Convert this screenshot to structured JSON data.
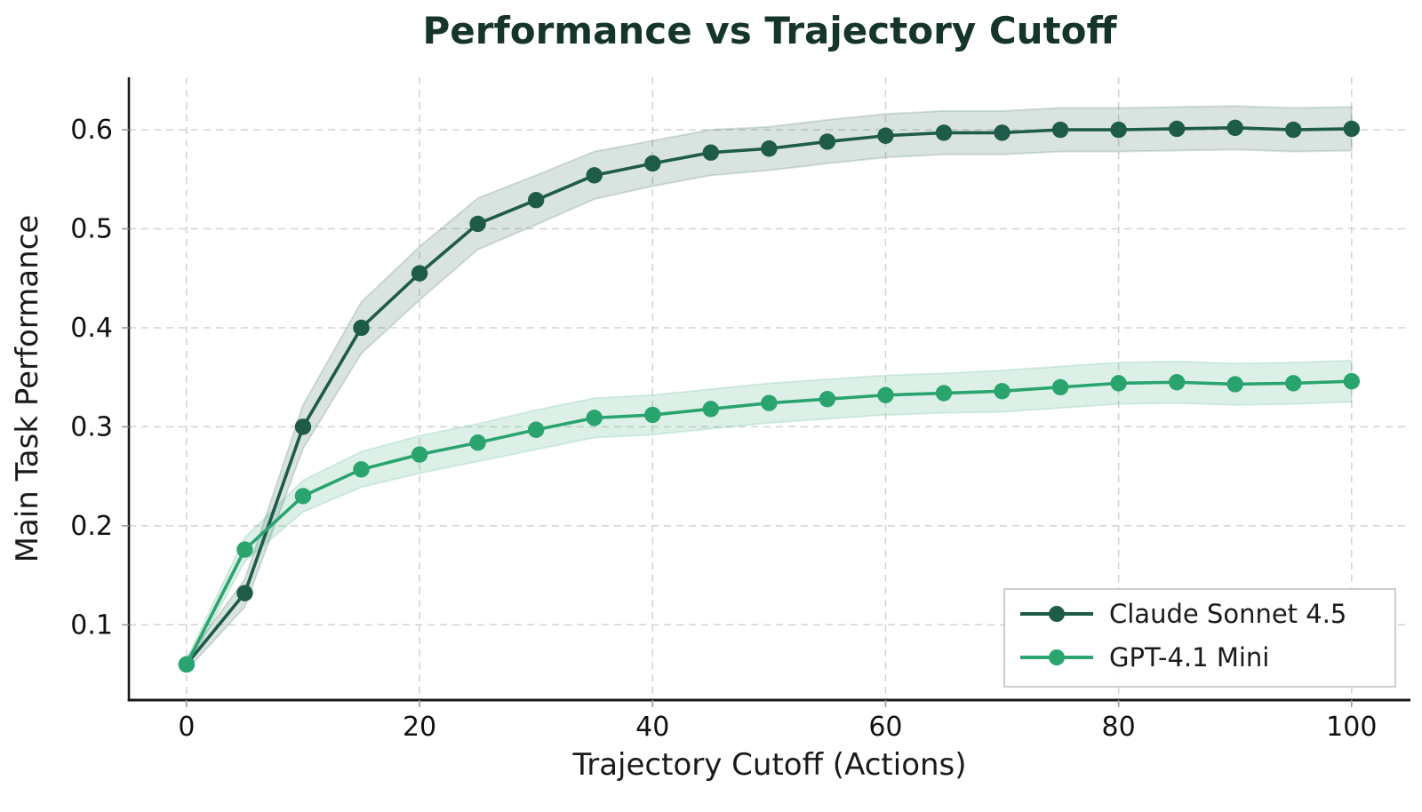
{
  "title": "Performance vs Trajectory Cutoff",
  "axes": {
    "x_label": "Trajectory Cutoff (Actions)",
    "y_label": "Main Task Performance",
    "x_tick_labels": [
      "0",
      "20",
      "40",
      "60",
      "80",
      "100"
    ],
    "x_tick_values": [
      0,
      20,
      40,
      60,
      80,
      100
    ],
    "y_tick_labels": [
      "0.1",
      "0.2",
      "0.3",
      "0.4",
      "0.5",
      "0.6"
    ],
    "y_tick_values": [
      0.1,
      0.2,
      0.3,
      0.4,
      0.5,
      0.6
    ]
  },
  "legend": {
    "entries": [
      "Claude Sonnet 4.5",
      "GPT-4.1 Mini"
    ],
    "position": "lower right"
  },
  "colors": {
    "title_text": "#163529",
    "axis_text": "#1a1a1a",
    "tick_text": "#111111",
    "spine": "#1a1a1a",
    "grid": "#d3d3d3",
    "tick_mark": "#9a9a9a",
    "legend_border": "#c8c8c8",
    "legend_bg": "#ffffff",
    "claude_line": "#1E5B49",
    "claude_band": "rgba(30,91,73,0.17)",
    "gpt_line": "#2AA46E",
    "gpt_band": "rgba(42,164,110,0.16)"
  },
  "chart_data": {
    "type": "line",
    "title": "Performance vs Trajectory Cutoff",
    "xlabel": "Trajectory Cutoff (Actions)",
    "ylabel": "Main Task Performance",
    "x": [
      0,
      5,
      10,
      15,
      20,
      25,
      30,
      35,
      40,
      45,
      50,
      55,
      60,
      65,
      70,
      75,
      80,
      85,
      90,
      95,
      100
    ],
    "series": [
      {
        "name": "Claude Sonnet 4.5",
        "color_key": "claude_line",
        "band_key": "claude_band",
        "values": [
          0.06,
          0.132,
          0.3,
          0.4,
          0.455,
          0.505,
          0.529,
          0.554,
          0.566,
          0.577,
          0.581,
          0.588,
          0.594,
          0.597,
          0.597,
          0.6,
          0.6,
          0.601,
          0.602,
          0.6,
          0.601
        ],
        "ci_half_width": [
          0.006,
          0.014,
          0.022,
          0.026,
          0.027,
          0.026,
          0.025,
          0.024,
          0.023,
          0.023,
          0.022,
          0.022,
          0.022,
          0.022,
          0.022,
          0.022,
          0.022,
          0.022,
          0.022,
          0.022,
          0.022
        ]
      },
      {
        "name": "GPT-4.1 Mini",
        "color_key": "gpt_line",
        "band_key": "gpt_band",
        "values": [
          0.06,
          0.176,
          0.23,
          0.257,
          0.272,
          0.284,
          0.297,
          0.309,
          0.312,
          0.318,
          0.324,
          0.328,
          0.332,
          0.334,
          0.336,
          0.34,
          0.344,
          0.345,
          0.343,
          0.344,
          0.346
        ],
        "ci_half_width": [
          0.005,
          0.012,
          0.016,
          0.018,
          0.019,
          0.019,
          0.02,
          0.02,
          0.02,
          0.02,
          0.02,
          0.02,
          0.02,
          0.02,
          0.021,
          0.021,
          0.021,
          0.021,
          0.021,
          0.021,
          0.021
        ]
      }
    ],
    "xlim": [
      -4.95,
      105.05
    ],
    "ylim": [
      0.024,
      0.653
    ],
    "grid": true,
    "grid_style": "dashed",
    "legend_position": "lower right"
  }
}
